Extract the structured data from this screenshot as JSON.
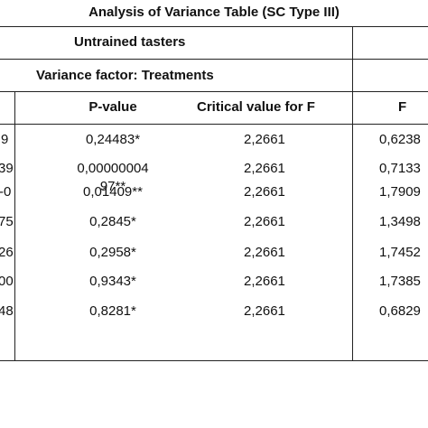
{
  "title": "Analysis of Variance Table (SC Type III)",
  "group_header": "Untrained tasters",
  "factor_header": "Variance factor: Treatments",
  "columns": {
    "pvalue": "P-value",
    "critical": "Critical value for F",
    "f": "F"
  },
  "rows": [
    {
      "left_cut": "9",
      "pvalue_line1": "0,24483*",
      "pvalue_line2": "",
      "critical": "2,2661",
      "f": "0,6238"
    },
    {
      "left_cut": "39",
      "pvalue_line1": "0,00000004",
      "pvalue_line2": "97**",
      "critical": "2,2661",
      "f": "0,7133"
    },
    {
      "left_cut": "-0",
      "pvalue_line1": "0,01409**",
      "pvalue_line2": "",
      "critical": "2,2661",
      "f": "1,7909"
    },
    {
      "left_cut": "75",
      "pvalue_line1": "0,2845*",
      "pvalue_line2": "",
      "critical": "2,2661",
      "f": "1,3498"
    },
    {
      "left_cut": "26",
      "pvalue_line1": "0,2958*",
      "pvalue_line2": "",
      "critical": "2,2661",
      "f": "1,7452"
    },
    {
      "left_cut": "00",
      "pvalue_line1": "0,9343*",
      "pvalue_line2": "",
      "critical": "2,2661",
      "f": "1,7385"
    },
    {
      "left_cut": "48",
      "pvalue_line1": "0,8281*",
      "pvalue_line2": "",
      "critical": "2,2661",
      "f": "0,6829"
    }
  ]
}
